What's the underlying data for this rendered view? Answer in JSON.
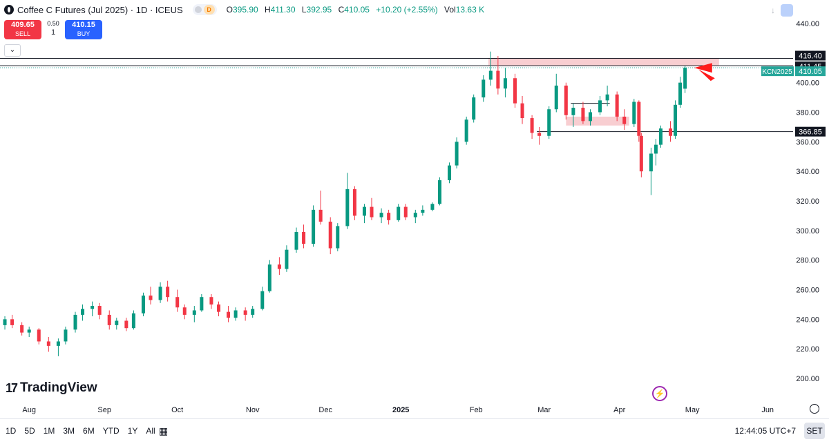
{
  "header": {
    "symbol_title": "Coffee C Futures (Jul 2025) · 1D · ICEUS",
    "source_badge": "D",
    "open_label": "O",
    "open": "395.90",
    "high_label": "H",
    "high": "411.30",
    "low_label": "L",
    "low": "392.95",
    "close_label": "C",
    "close": "410.05",
    "change": "+10.20 (+2.55%)",
    "vol_label": "Vol",
    "vol": "13.63 K"
  },
  "trade": {
    "sell_price": "409.65",
    "sell_label": "SELL",
    "spread": "0.50",
    "qty": "1",
    "buy_price": "410.15",
    "buy_label": "BUY"
  },
  "watermark": "TradingView",
  "bottom": {
    "ranges": [
      "1D",
      "5D",
      "1M",
      "3M",
      "6M",
      "YTD",
      "1Y",
      "All"
    ],
    "time": "12:44:05 UTC+7",
    "session": "SET"
  },
  "colors": {
    "up": "#089981",
    "down": "#f23645",
    "zone": "#f7c5c9",
    "last_label": "#26a69a",
    "axis_text": "#131722"
  },
  "chart_data": {
    "type": "candlestick",
    "title": "Coffee C Futures (Jul 2025) · 1D · ICEUS",
    "xlabel": "",
    "ylabel": "",
    "ylim": [
      200,
      440
    ],
    "y_ticks": [
      "440.00",
      "420.00",
      "400.00",
      "380.00",
      "360.00",
      "340.00",
      "320.00",
      "300.00",
      "280.00",
      "260.00",
      "240.00",
      "220.00",
      "200.00"
    ],
    "x_ticks": [
      "Aug",
      "Sep",
      "Oct",
      "Nov",
      "Dec",
      "2025",
      "Feb",
      "Mar",
      "Apr",
      "May",
      "Jun"
    ],
    "x_tick_dates": [
      "2024-08-01",
      "2024-09-01",
      "2024-10-01",
      "2024-11-01",
      "2024-12-01",
      "2025-01-01",
      "2025-02-01",
      "2025-03-01",
      "2025-04-01",
      "2025-05-01",
      "2025-06-01"
    ],
    "x_range": [
      "2024-07-20",
      "2025-06-20"
    ],
    "grid": false,
    "series": [
      {
        "name": "KCN2025",
        "candles": [
          {
            "d": "2024-07-22",
            "o": 236,
            "h": 242,
            "l": 233,
            "c": 240
          },
          {
            "d": "2024-07-25",
            "o": 240,
            "h": 243,
            "l": 234,
            "c": 236
          },
          {
            "d": "2024-07-29",
            "o": 236,
            "h": 238,
            "l": 229,
            "c": 231
          },
          {
            "d": "2024-08-01",
            "o": 231,
            "h": 235,
            "l": 228,
            "c": 233
          },
          {
            "d": "2024-08-05",
            "o": 233,
            "h": 234,
            "l": 223,
            "c": 225
          },
          {
            "d": "2024-08-09",
            "o": 225,
            "h": 228,
            "l": 218,
            "c": 222
          },
          {
            "d": "2024-08-13",
            "o": 222,
            "h": 227,
            "l": 215,
            "c": 225
          },
          {
            "d": "2024-08-16",
            "o": 225,
            "h": 235,
            "l": 223,
            "c": 233
          },
          {
            "d": "2024-08-20",
            "o": 233,
            "h": 245,
            "l": 231,
            "c": 243
          },
          {
            "d": "2024-08-23",
            "o": 243,
            "h": 250,
            "l": 239,
            "c": 247
          },
          {
            "d": "2024-08-27",
            "o": 247,
            "h": 252,
            "l": 242,
            "c": 249
          },
          {
            "d": "2024-08-30",
            "o": 249,
            "h": 251,
            "l": 240,
            "c": 243
          },
          {
            "d": "2024-09-03",
            "o": 243,
            "h": 246,
            "l": 233,
            "c": 236
          },
          {
            "d": "2024-09-06",
            "o": 236,
            "h": 241,
            "l": 233,
            "c": 239
          },
          {
            "d": "2024-09-10",
            "o": 239,
            "h": 241,
            "l": 232,
            "c": 234
          },
          {
            "d": "2024-09-13",
            "o": 234,
            "h": 246,
            "l": 233,
            "c": 244
          },
          {
            "d": "2024-09-17",
            "o": 244,
            "h": 258,
            "l": 242,
            "c": 256
          },
          {
            "d": "2024-09-20",
            "o": 256,
            "h": 262,
            "l": 250,
            "c": 253
          },
          {
            "d": "2024-09-24",
            "o": 253,
            "h": 265,
            "l": 251,
            "c": 262
          },
          {
            "d": "2024-09-27",
            "o": 262,
            "h": 266,
            "l": 252,
            "c": 255
          },
          {
            "d": "2024-10-01",
            "o": 255,
            "h": 260,
            "l": 245,
            "c": 248
          },
          {
            "d": "2024-10-04",
            "o": 248,
            "h": 250,
            "l": 240,
            "c": 243
          },
          {
            "d": "2024-10-08",
            "o": 243,
            "h": 249,
            "l": 238,
            "c": 246
          },
          {
            "d": "2024-10-11",
            "o": 246,
            "h": 257,
            "l": 245,
            "c": 255
          },
          {
            "d": "2024-10-15",
            "o": 255,
            "h": 257,
            "l": 247,
            "c": 250
          },
          {
            "d": "2024-10-18",
            "o": 250,
            "h": 252,
            "l": 242,
            "c": 245
          },
          {
            "d": "2024-10-22",
            "o": 245,
            "h": 249,
            "l": 238,
            "c": 241
          },
          {
            "d": "2024-10-25",
            "o": 241,
            "h": 248,
            "l": 239,
            "c": 246
          },
          {
            "d": "2024-10-29",
            "o": 246,
            "h": 248,
            "l": 239,
            "c": 243
          },
          {
            "d": "2024-11-01",
            "o": 243,
            "h": 249,
            "l": 241,
            "c": 247
          },
          {
            "d": "2024-11-05",
            "o": 247,
            "h": 262,
            "l": 246,
            "c": 259
          },
          {
            "d": "2024-11-08",
            "o": 259,
            "h": 280,
            "l": 258,
            "c": 277
          },
          {
            "d": "2024-11-12",
            "o": 277,
            "h": 282,
            "l": 270,
            "c": 274
          },
          {
            "d": "2024-11-15",
            "o": 274,
            "h": 290,
            "l": 272,
            "c": 287
          },
          {
            "d": "2024-11-19",
            "o": 287,
            "h": 302,
            "l": 285,
            "c": 299
          },
          {
            "d": "2024-11-22",
            "o": 299,
            "h": 304,
            "l": 288,
            "c": 291
          },
          {
            "d": "2024-11-26",
            "o": 291,
            "h": 317,
            "l": 289,
            "c": 314
          },
          {
            "d": "2024-11-29",
            "o": 314,
            "h": 327,
            "l": 304,
            "c": 306
          },
          {
            "d": "2024-12-03",
            "o": 306,
            "h": 309,
            "l": 284,
            "c": 288
          },
          {
            "d": "2024-12-06",
            "o": 288,
            "h": 305,
            "l": 286,
            "c": 303
          },
          {
            "d": "2024-12-10",
            "o": 303,
            "h": 339,
            "l": 301,
            "c": 328
          },
          {
            "d": "2024-12-13",
            "o": 328,
            "h": 330,
            "l": 307,
            "c": 310
          },
          {
            "d": "2024-12-17",
            "o": 310,
            "h": 318,
            "l": 305,
            "c": 316
          },
          {
            "d": "2024-12-20",
            "o": 316,
            "h": 322,
            "l": 307,
            "c": 309
          },
          {
            "d": "2024-12-24",
            "o": 309,
            "h": 315,
            "l": 305,
            "c": 312
          },
          {
            "d": "2024-12-27",
            "o": 312,
            "h": 314,
            "l": 304,
            "c": 307
          },
          {
            "d": "2024-12-31",
            "o": 307,
            "h": 318,
            "l": 306,
            "c": 316
          },
          {
            "d": "2025-01-03",
            "o": 316,
            "h": 318,
            "l": 307,
            "c": 309
          },
          {
            "d": "2025-01-07",
            "o": 309,
            "h": 314,
            "l": 305,
            "c": 312
          },
          {
            "d": "2025-01-10",
            "o": 312,
            "h": 317,
            "l": 310,
            "c": 314
          },
          {
            "d": "2025-01-14",
            "o": 314,
            "h": 319,
            "l": 313,
            "c": 318
          },
          {
            "d": "2025-01-17",
            "o": 318,
            "h": 336,
            "l": 317,
            "c": 334
          },
          {
            "d": "2025-01-21",
            "o": 334,
            "h": 346,
            "l": 332,
            "c": 344
          },
          {
            "d": "2025-01-24",
            "o": 344,
            "h": 363,
            "l": 342,
            "c": 360
          },
          {
            "d": "2025-01-28",
            "o": 360,
            "h": 377,
            "l": 358,
            "c": 375
          },
          {
            "d": "2025-01-31",
            "o": 375,
            "h": 392,
            "l": 373,
            "c": 390
          },
          {
            "d": "2025-02-04",
            "o": 390,
            "h": 405,
            "l": 387,
            "c": 402
          },
          {
            "d": "2025-02-07",
            "o": 402,
            "h": 421,
            "l": 398,
            "c": 408
          },
          {
            "d": "2025-02-10",
            "o": 408,
            "h": 418,
            "l": 392,
            "c": 396
          },
          {
            "d": "2025-02-13",
            "o": 396,
            "h": 410,
            "l": 390,
            "c": 403
          },
          {
            "d": "2025-02-17",
            "o": 403,
            "h": 406,
            "l": 383,
            "c": 386
          },
          {
            "d": "2025-02-20",
            "o": 386,
            "h": 391,
            "l": 372,
            "c": 376
          },
          {
            "d": "2025-02-24",
            "o": 376,
            "h": 378,
            "l": 362,
            "c": 366
          },
          {
            "d": "2025-02-27",
            "o": 366,
            "h": 370,
            "l": 358,
            "c": 364
          },
          {
            "d": "2025-03-03",
            "o": 364,
            "h": 384,
            "l": 362,
            "c": 382
          },
          {
            "d": "2025-03-06",
            "o": 382,
            "h": 406,
            "l": 380,
            "c": 398
          },
          {
            "d": "2025-03-10",
            "o": 398,
            "h": 400,
            "l": 375,
            "c": 378
          },
          {
            "d": "2025-03-13",
            "o": 378,
            "h": 386,
            "l": 370,
            "c": 383
          },
          {
            "d": "2025-03-17",
            "o": 383,
            "h": 387,
            "l": 372,
            "c": 374
          },
          {
            "d": "2025-03-20",
            "o": 374,
            "h": 382,
            "l": 371,
            "c": 380
          },
          {
            "d": "2025-03-24",
            "o": 380,
            "h": 391,
            "l": 378,
            "c": 388
          },
          {
            "d": "2025-03-27",
            "o": 388,
            "h": 398,
            "l": 384,
            "c": 392
          },
          {
            "d": "2025-03-31",
            "o": 392,
            "h": 394,
            "l": 374,
            "c": 377
          },
          {
            "d": "2025-04-03",
            "o": 377,
            "h": 382,
            "l": 368,
            "c": 372
          },
          {
            "d": "2025-04-07",
            "o": 372,
            "h": 389,
            "l": 370,
            "c": 387
          },
          {
            "d": "2025-04-09",
            "o": 387,
            "h": 388,
            "l": 360,
            "c": 364
          },
          {
            "d": "2025-04-10",
            "o": 364,
            "h": 366,
            "l": 336,
            "c": 340
          },
          {
            "d": "2025-04-14",
            "o": 340,
            "h": 356,
            "l": 324,
            "c": 352
          },
          {
            "d": "2025-04-16",
            "o": 352,
            "h": 362,
            "l": 344,
            "c": 358
          },
          {
            "d": "2025-04-18",
            "o": 358,
            "h": 371,
            "l": 356,
            "c": 369
          },
          {
            "d": "2025-04-22",
            "o": 369,
            "h": 374,
            "l": 360,
            "c": 364
          },
          {
            "d": "2025-04-24",
            "o": 364,
            "h": 388,
            "l": 362,
            "c": 385
          },
          {
            "d": "2025-04-26",
            "o": 385,
            "h": 404,
            "l": 383,
            "c": 400
          },
          {
            "d": "2025-04-28",
            "o": 395.9,
            "h": 411.3,
            "l": 392.95,
            "c": 410.05
          }
        ]
      }
    ],
    "resistance_zone": {
      "from": "2025-02-06",
      "to": "2025-05-12",
      "low": 411.45,
      "high": 416.4
    },
    "mid_zone": {
      "from": "2025-03-10",
      "to": "2025-04-05",
      "low": 371,
      "high": 377
    },
    "mid_line": {
      "from": "2025-03-12",
      "to": "2025-03-28",
      "y": 386
    },
    "support_line": {
      "from": "2025-02-26",
      "y": 366.85
    },
    "price_labels": [
      {
        "text": "416.40",
        "y": 416.4,
        "style": "black"
      },
      {
        "text": "411.45",
        "y": 411.45,
        "style": "black"
      },
      {
        "text": "410.05",
        "y": 410.05,
        "style": "last",
        "ticker": "KCN2025"
      },
      {
        "text": "366.85",
        "y": 366.85,
        "style": "black"
      }
    ],
    "annotation_arrow": {
      "date": "2025-05-08",
      "y": 410
    }
  }
}
